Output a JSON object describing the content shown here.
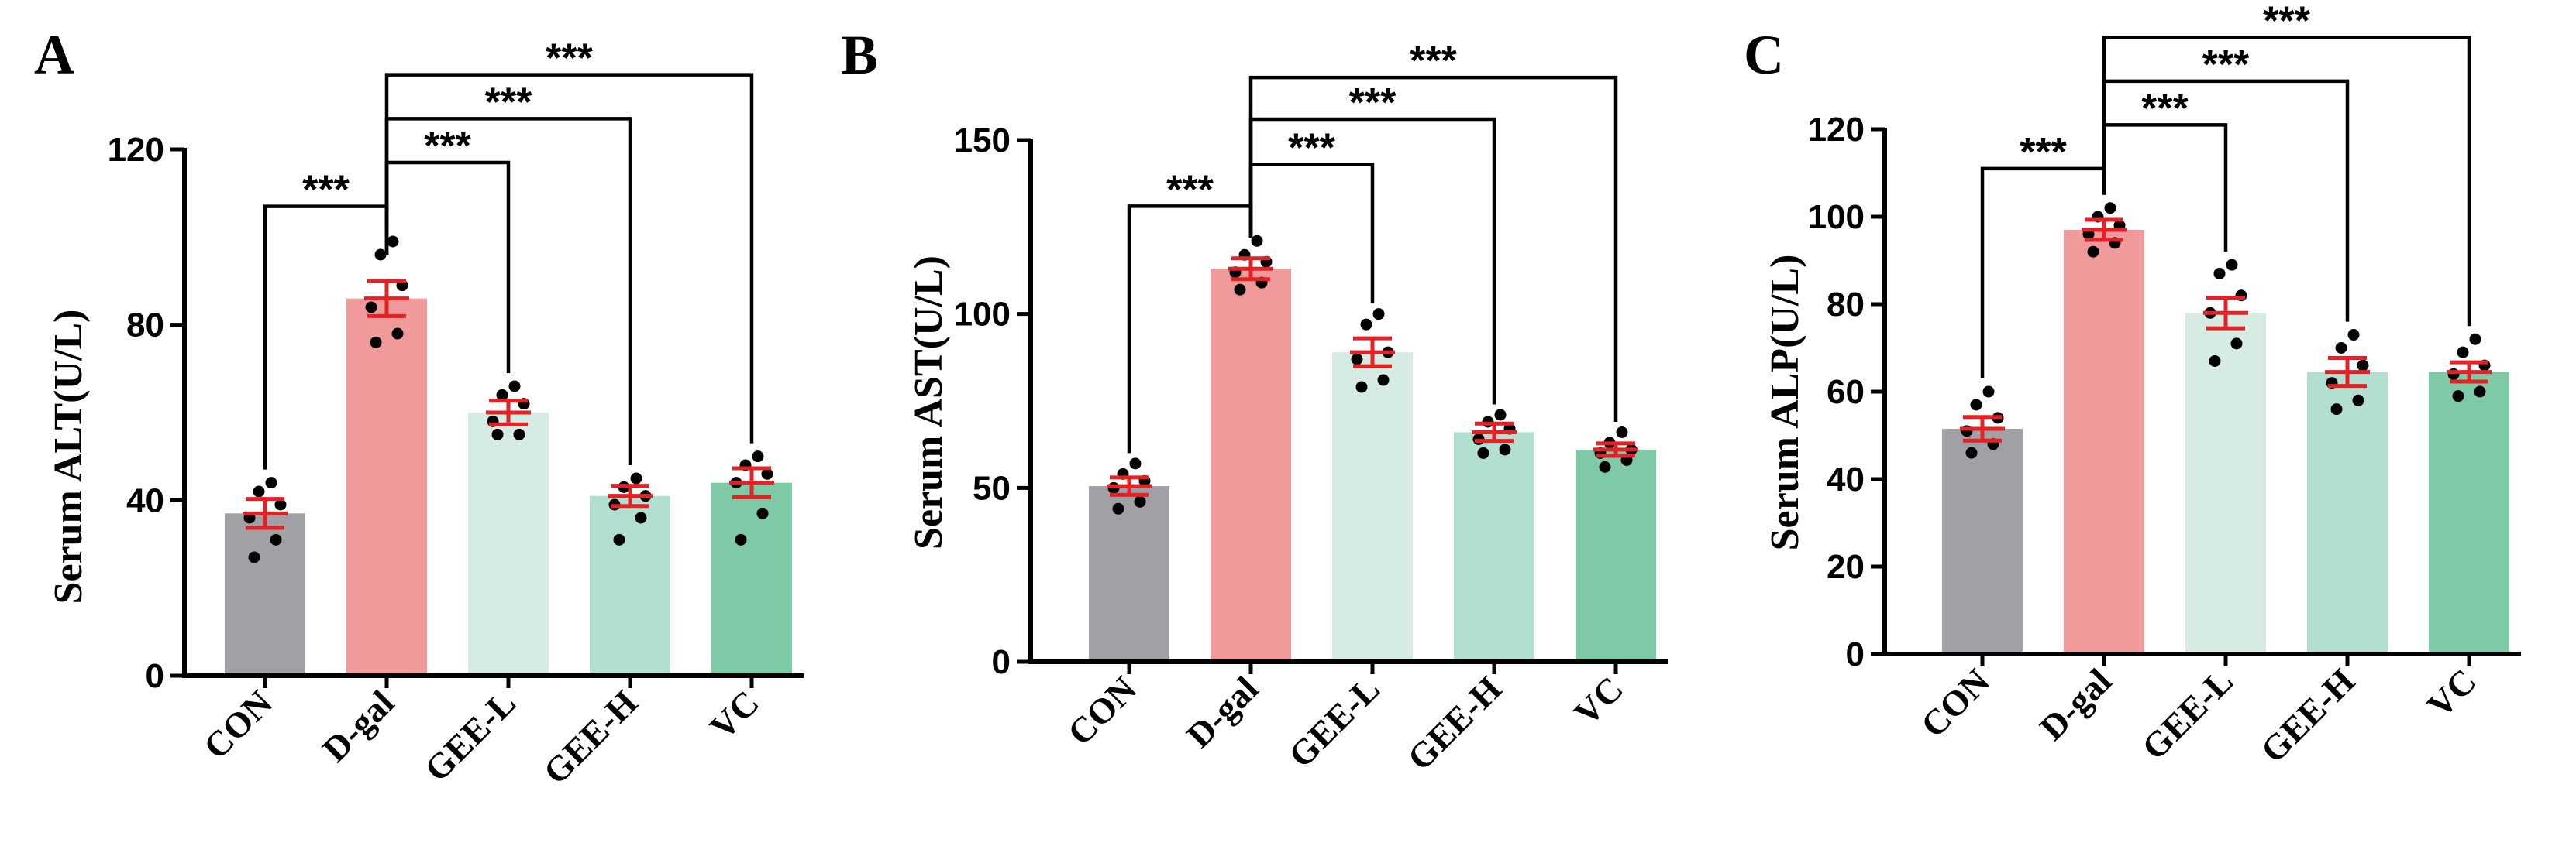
{
  "colors": {
    "CON": "#a1a1a5",
    "D-gal": "#f09a9c",
    "GEE-L": "#d6ece2",
    "GEE-H": "#b2dfcf",
    "VC": "#7ecaa7",
    "error": "#e32226",
    "dot": "#000000",
    "axis": "#000000"
  },
  "chart_data": [
    {
      "type": "bar",
      "panel": "A",
      "ylabel": "Serum ALT(U/L)",
      "categories": [
        "CON",
        "D-gal",
        "GEE-L",
        "GEE-H",
        "VC"
      ],
      "values": [
        37,
        86,
        60,
        41,
        44
      ],
      "sem": [
        3.3,
        4,
        2.7,
        2.3,
        3.3
      ],
      "points": [
        [
          27,
          31,
          36,
          39,
          42,
          44
        ],
        [
          76,
          78,
          84,
          89,
          96,
          99
        ],
        [
          55,
          55,
          58,
          62,
          64,
          66
        ],
        [
          31,
          36,
          39,
          41,
          43,
          45
        ],
        [
          31,
          37,
          44,
          46,
          48,
          50
        ]
      ],
      "ylim": [
        0,
        120
      ],
      "yticks": [
        0,
        40,
        80,
        120
      ],
      "significance": [
        {
          "from": 0,
          "to": 1,
          "label": "***",
          "y": 107
        },
        {
          "from": 1,
          "to": 2,
          "label": "***",
          "y": 117
        },
        {
          "from": 1,
          "to": 3,
          "label": "***",
          "y": 127
        },
        {
          "from": 1,
          "to": 4,
          "label": "***",
          "y": 137
        }
      ]
    },
    {
      "type": "bar",
      "panel": "B",
      "ylabel": "Serum AST(U/L)",
      "categories": [
        "CON",
        "D-gal",
        "GEE-L",
        "GEE-H",
        "VC"
      ],
      "values": [
        50.5,
        113,
        89,
        66,
        61
      ],
      "sem": [
        2.5,
        3,
        4,
        2.5,
        1.8
      ],
      "points": [
        [
          44,
          46,
          50,
          52,
          54,
          57
        ],
        [
          107,
          109,
          112,
          115,
          117,
          121
        ],
        [
          79,
          81,
          87,
          89,
          97,
          100
        ],
        [
          60,
          61,
          64,
          67,
          69,
          71
        ],
        [
          56,
          58,
          60,
          61,
          63,
          66
        ]
      ],
      "ylim": [
        0,
        150
      ],
      "yticks": [
        0,
        50,
        100,
        150
      ],
      "significance": [
        {
          "from": 0,
          "to": 1,
          "label": "***",
          "y": 131
        },
        {
          "from": 1,
          "to": 2,
          "label": "***",
          "y": 143
        },
        {
          "from": 1,
          "to": 3,
          "label": "***",
          "y": 156
        },
        {
          "from": 1,
          "to": 4,
          "label": "***",
          "y": 168
        }
      ]
    },
    {
      "type": "bar",
      "panel": "C",
      "ylabel": "Serum ALP(U/L)",
      "categories": [
        "CON",
        "D-gal",
        "GEE-L",
        "GEE-H",
        "VC"
      ],
      "values": [
        51.5,
        97,
        78,
        64.5,
        64.5
      ],
      "sem": [
        2.7,
        2.3,
        3.5,
        3.2,
        2.2
      ],
      "points": [
        [
          46,
          48,
          51,
          54,
          57,
          60
        ],
        [
          92,
          94,
          96,
          98,
          100,
          102
        ],
        [
          67,
          71,
          78,
          82,
          87,
          89
        ],
        [
          56,
          58,
          62,
          66,
          70,
          73
        ],
        [
          59,
          60,
          64,
          66,
          69,
          72
        ]
      ],
      "ylim": [
        0,
        120
      ],
      "yticks": [
        0,
        20,
        40,
        60,
        80,
        100,
        120
      ],
      "significance": [
        {
          "from": 0,
          "to": 1,
          "label": "***",
          "y": 111
        },
        {
          "from": 1,
          "to": 2,
          "label": "***",
          "y": 121
        },
        {
          "from": 1,
          "to": 3,
          "label": "***",
          "y": 131
        },
        {
          "from": 1,
          "to": 4,
          "label": "***",
          "y": 141
        }
      ]
    }
  ]
}
